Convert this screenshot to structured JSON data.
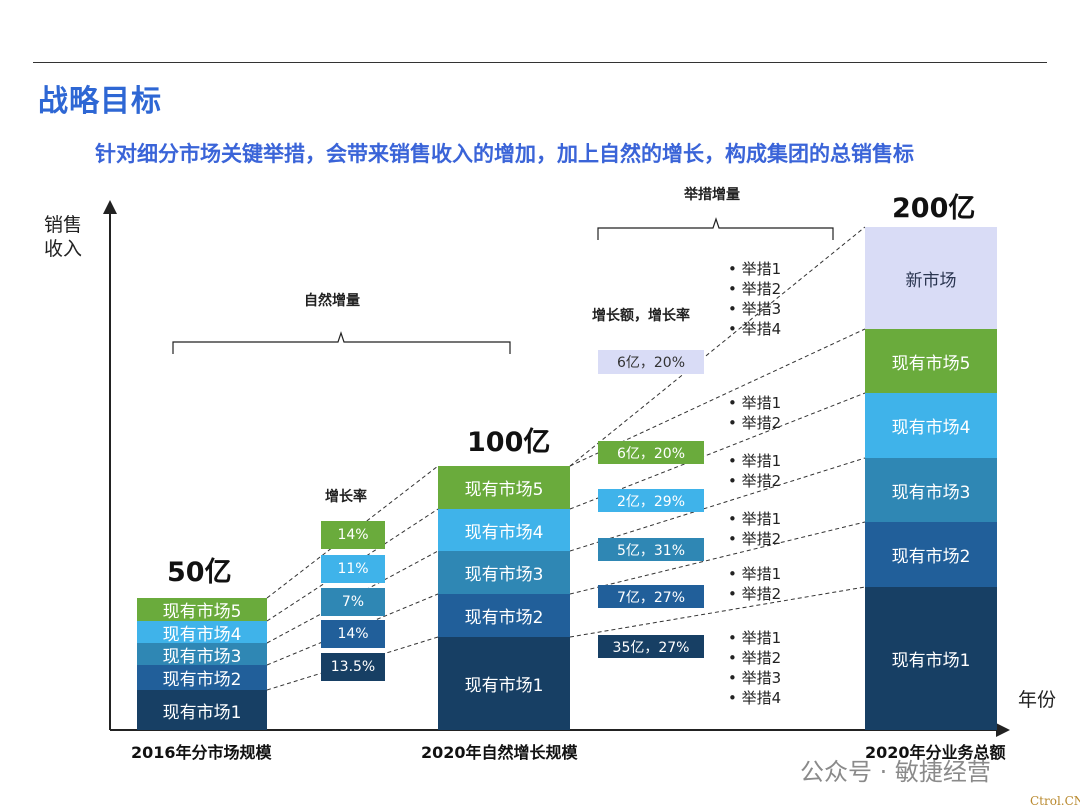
{
  "title": "战略目标",
  "subtitle": "针对细分市场关键举措，会带来销售收入的增加，加上自然的增长，构成集团的总销售标",
  "axes": {
    "y_label_line1": "销售",
    "y_label_line2": "收入",
    "x_label": "年份"
  },
  "bars": {
    "b2016": {
      "total": "50亿",
      "bottom_label": "2016年分市场规模",
      "segments": [
        "现有市场1",
        "现有市场2",
        "现有市场3",
        "现有市场4",
        "现有市场5"
      ]
    },
    "b2020n": {
      "total": "100亿",
      "bottom_label": "2020年自然增长规模",
      "segments": [
        "现有市场1",
        "现有市场2",
        "现有市场3",
        "现有市场4",
        "现有市场5"
      ]
    },
    "b2020t": {
      "total": "200亿",
      "bottom_label": "2020年分业务总额",
      "segments": [
        "现有市场1",
        "现有市场2",
        "现有市场3",
        "现有市场4",
        "现有市场5",
        "新市场"
      ]
    }
  },
  "natural_growth": {
    "brace_label": "自然增量",
    "rate_header": "增长率",
    "rates": [
      "13.5%",
      "14%",
      "7%",
      "11%",
      "14%"
    ]
  },
  "measure_growth": {
    "brace_label": "举措增量",
    "header": "增长额，增长率",
    "boxes": [
      "35亿，27%",
      "7亿，27%",
      "5亿，31%",
      "2亿，29%",
      "6亿，20%",
      "6亿，20%"
    ],
    "bullets": {
      "m1": [
        "举措1",
        "举措2",
        "举措3",
        "举措4"
      ],
      "m2": [
        "举措1",
        "举措2"
      ],
      "m3": [
        "举措1",
        "举措2"
      ],
      "m4": [
        "举措1",
        "举措2"
      ],
      "m5": [
        "举措1",
        "举措2"
      ],
      "new": [
        "举措1",
        "举措2",
        "举措3",
        "举措4"
      ]
    }
  },
  "colors": {
    "m1": "#173f64",
    "m2": "#215f9a",
    "m3": "#2f87b4",
    "m4": "#3fb3ea",
    "m5": "#6aab3c",
    "new": "#d9dcf6",
    "title": "#2e67d4",
    "subtitle": "#3a64d8"
  },
  "watermark": {
    "text": "公众号 · 敏捷经营",
    "corner": "Ctrol.CN"
  }
}
